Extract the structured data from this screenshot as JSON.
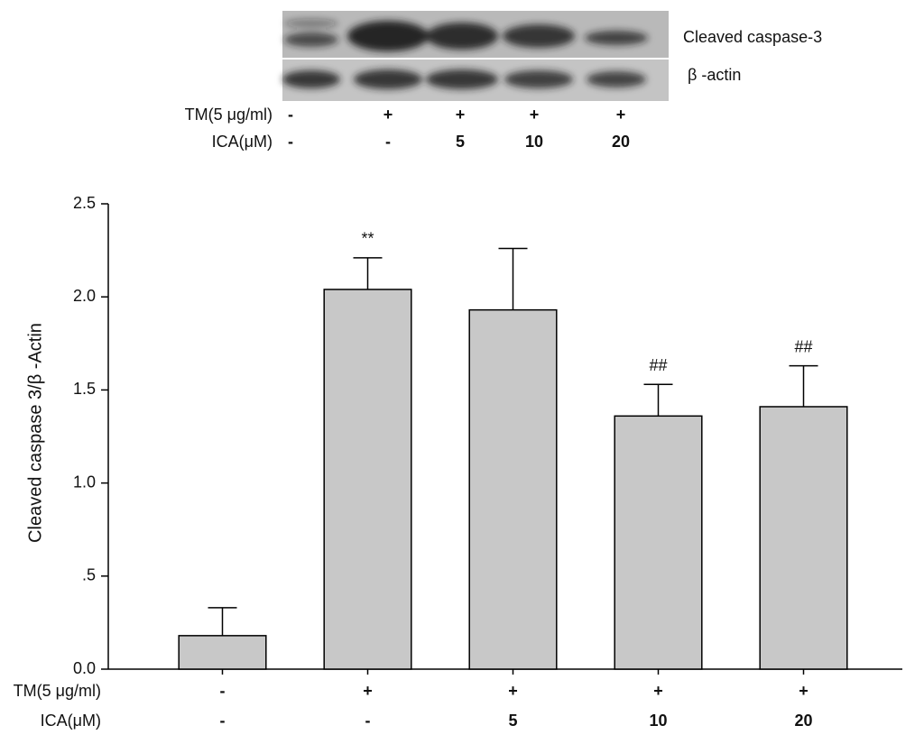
{
  "chart_data": {
    "type": "bar",
    "blot_labels": [
      "Cleaved caspase-3",
      "β -actin"
    ],
    "y_label": "Cleaved caspase 3/β -Actin",
    "conditions": [
      {
        "name": "TM(5 μg/ml)",
        "labels": [
          "-",
          "+",
          "+",
          "+",
          "+"
        ]
      },
      {
        "name": "ICA(μM)",
        "labels": [
          "-",
          "-",
          "5",
          "10",
          "20"
        ]
      }
    ],
    "values": [
      0.18,
      2.04,
      1.93,
      1.36,
      1.41
    ],
    "errors": [
      0.15,
      0.17,
      0.33,
      0.17,
      0.22
    ],
    "significance": [
      null,
      "**",
      null,
      "##",
      "##"
    ],
    "color": "#c8c8c8",
    "ylim": [
      0,
      2.5
    ],
    "yticks": [
      {
        "value": 0,
        "label": "0.0"
      },
      {
        "value": 0.5,
        "label": ".5"
      },
      {
        "value": 1,
        "label": "1.0"
      },
      {
        "value": 1.5,
        "label": "1.5"
      },
      {
        "value": 2,
        "label": "2.0"
      },
      {
        "value": 2.5,
        "label": "2.5"
      }
    ]
  }
}
